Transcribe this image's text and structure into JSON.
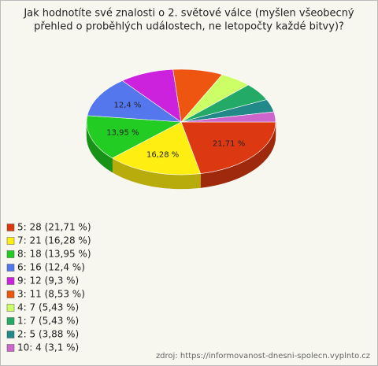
{
  "chart_data": {
    "type": "pie3d",
    "title": [
      "Jak hodnotíte své znalosti o 2. světové válce (myšlen všeobecný",
      "přehled o proběhlých událostech, ne letopočty každé bitvy)?"
    ],
    "categories": [
      "5: 28 (21,71 %)",
      "7: 21 (16,28 %)",
      "8: 18 (13,95 %)",
      "6: 16 (12,4 %)",
      "9: 12 (9,3 %)",
      "3: 11 (8,53 %)",
      "4: 7 (5,43 %)",
      "1: 7 (5,43 %)",
      "2: 5 (3,88 %)",
      "10: 4 (3,1 %)"
    ],
    "values": [
      21.71,
      16.28,
      13.95,
      12.4,
      9.3,
      8.53,
      5.43,
      5.43,
      3.88,
      3.1
    ],
    "value_labels": [
      "21,71 %",
      "16,28 %",
      "13,95 %",
      "12,4 %",
      null,
      null,
      null,
      null,
      null,
      null
    ],
    "colors": [
      "#dc3912",
      "#ffee11",
      "#22cc22",
      "#5577ee",
      "#cc22dd",
      "#ee5511",
      "#ccff66",
      "#22aa66",
      "#228888",
      "#cc66cc"
    ],
    "source": "zdroj: https://informovanost-dnesni-spolecn.vyplnto.cz"
  }
}
